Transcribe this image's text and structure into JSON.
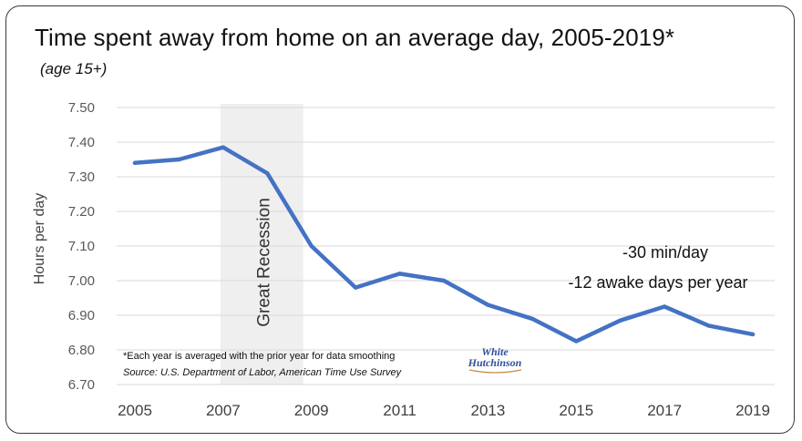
{
  "chart_data": {
    "type": "line",
    "title": "Time spent away from home on an average day, 2005-2019*",
    "subtitle": "(age 15+)",
    "xlabel": "",
    "ylabel": "Hours per day",
    "x": [
      2005,
      2006,
      2007,
      2008,
      2009,
      2010,
      2011,
      2012,
      2013,
      2014,
      2015,
      2016,
      2017,
      2018,
      2019
    ],
    "series": [
      {
        "values": [
          7.34,
          7.35,
          7.385,
          7.31,
          7.1,
          6.98,
          7.02,
          7.0,
          6.93,
          6.89,
          6.825,
          6.885,
          6.925,
          6.87,
          6.845
        ],
        "color": "#4472c4"
      }
    ],
    "xlim": [
      2005,
      2019
    ],
    "ylim": [
      6.7,
      7.5
    ],
    "x_ticks": [
      "2005",
      "2007",
      "2009",
      "2011",
      "2013",
      "2015",
      "2017",
      "2019"
    ],
    "y_ticks": [
      "7.50",
      "7.40",
      "7.30",
      "7.20",
      "7.10",
      "7.00",
      "6.90",
      "6.80",
      "6.70"
    ],
    "grid": true,
    "shaded_region": {
      "label": "Great Recession",
      "from": 2007,
      "to": 2009,
      "color": "#efefef"
    },
    "annotations": [
      "-30 min/day",
      "-12 awake days per year"
    ],
    "footnote": "*Each year is averaged with the prior year for data smoothing",
    "source": "Source: U.S. Department of Labor, American Time Use Survey",
    "logo": {
      "line1": "White",
      "line2": "Hutchinson"
    }
  }
}
